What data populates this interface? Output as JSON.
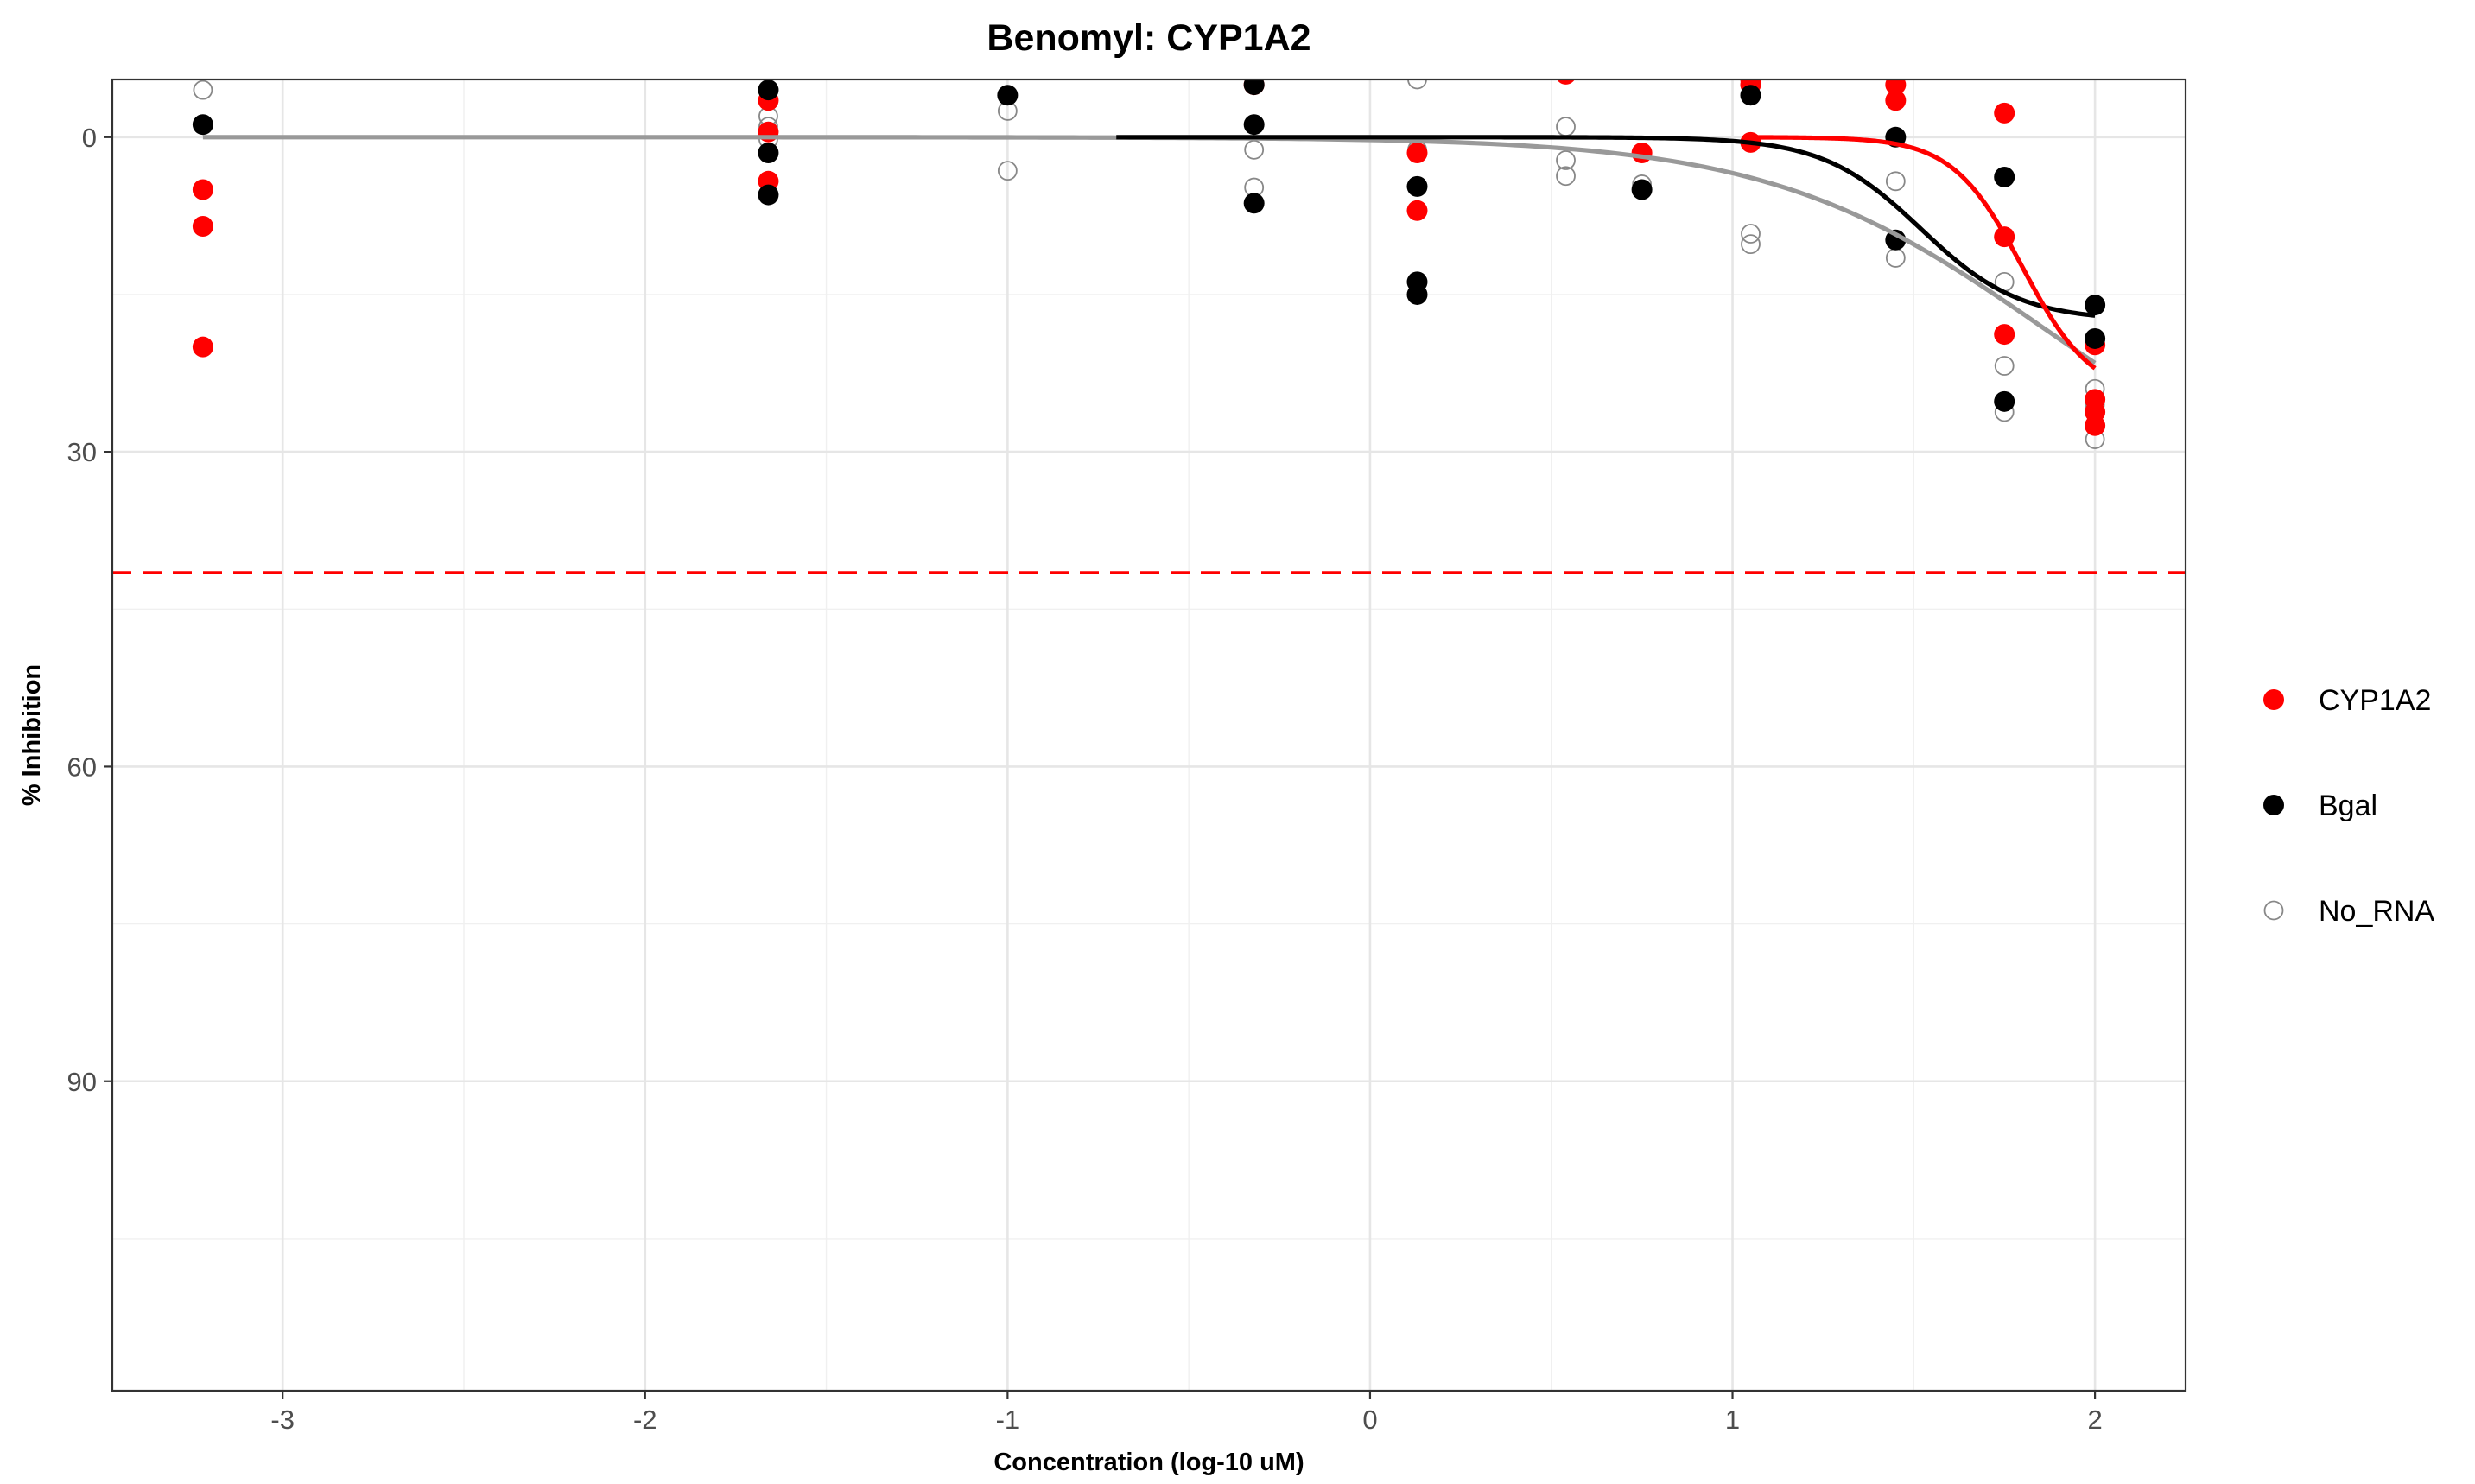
{
  "chart_data": {
    "type": "scatter",
    "title": "Benomyl: CYP1A2",
    "xlabel": "Concentration (log-10 uM)",
    "ylabel": "% Inhibition",
    "xlim": [
      -3.47,
      2.25
    ],
    "ylim": [
      119.5,
      -5.5
    ],
    "y_reversed": true,
    "x_ticks": [
      -3,
      -2,
      -1,
      0,
      1,
      2
    ],
    "x_tick_labels": [
      "-3",
      "-2",
      "-1",
      "0",
      "1",
      "2"
    ],
    "y_ticks": [
      0,
      30,
      60,
      90
    ],
    "y_tick_labels": [
      "0",
      "30",
      "60",
      "90"
    ],
    "grid": true,
    "legend_position": "right",
    "threshold_line": {
      "y": 41.5,
      "style": "dashed",
      "color": "#ff0000"
    },
    "series": [
      {
        "name": "CYP1A2",
        "color": "#ff0000",
        "marker": "filled",
        "points": [
          [
            -3.22,
            5.0
          ],
          [
            -3.22,
            8.5
          ],
          [
            -3.22,
            20.0
          ],
          [
            -1.66,
            -3.5
          ],
          [
            -1.66,
            -0.5
          ],
          [
            -1.66,
            4.2
          ],
          [
            -0.32,
            -5.0
          ],
          [
            0.13,
            1.5
          ],
          [
            0.13,
            7.0
          ],
          [
            0.54,
            -6.0
          ],
          [
            0.75,
            1.5
          ],
          [
            1.05,
            -5.5
          ],
          [
            1.05,
            -5.0
          ],
          [
            1.05,
            0.5
          ],
          [
            1.45,
            -5.0
          ],
          [
            1.45,
            -3.5
          ],
          [
            1.75,
            -2.3
          ],
          [
            1.75,
            9.5
          ],
          [
            1.75,
            18.8
          ],
          [
            2.0,
            19.8
          ],
          [
            2.0,
            25.0
          ],
          [
            2.0,
            26.2
          ],
          [
            2.0,
            27.5
          ]
        ],
        "curve": {
          "bottom": 0,
          "top": 24.8,
          "ec50_log": 1.8,
          "hill": 4.5,
          "x_start": 1.05,
          "x_end": 2.0
        }
      },
      {
        "name": "Bgal",
        "color": "#000000",
        "marker": "filled",
        "points": [
          [
            -3.22,
            -1.2
          ],
          [
            -1.66,
            -4.5
          ],
          [
            -1.66,
            1.5
          ],
          [
            -1.66,
            5.5
          ],
          [
            -1.0,
            -4.0
          ],
          [
            -0.32,
            -5.0
          ],
          [
            -0.32,
            -1.2
          ],
          [
            -0.32,
            6.3
          ],
          [
            0.13,
            4.7
          ],
          [
            0.13,
            13.8
          ],
          [
            0.13,
            15.0
          ],
          [
            0.75,
            5.0
          ],
          [
            1.05,
            -4.0
          ],
          [
            1.45,
            0.0
          ],
          [
            1.45,
            9.8
          ],
          [
            1.75,
            3.8
          ],
          [
            1.75,
            25.2
          ],
          [
            2.0,
            16.0
          ],
          [
            2.0,
            19.2
          ]
        ],
        "curve": {
          "bottom": 0,
          "top": 17.5,
          "ec50_log": 1.52,
          "hill": 3.2,
          "x_start": -0.7,
          "x_end": 2.0
        }
      },
      {
        "name": "No_RNA",
        "color": "#888888",
        "marker": "open",
        "points": [
          [
            -3.22,
            -4.5
          ],
          [
            -1.66,
            -2.0
          ],
          [
            -1.66,
            -1.0
          ],
          [
            -1.66,
            0.2
          ],
          [
            -1.0,
            -2.5
          ],
          [
            -1.0,
            3.2
          ],
          [
            -0.32,
            1.2
          ],
          [
            -0.32,
            4.8
          ],
          [
            0.13,
            -5.5
          ],
          [
            0.13,
            1.2
          ],
          [
            0.54,
            -1.0
          ],
          [
            0.54,
            2.2
          ],
          [
            0.54,
            3.7
          ],
          [
            0.75,
            4.5
          ],
          [
            1.05,
            9.2
          ],
          [
            1.05,
            10.2
          ],
          [
            1.45,
            4.2
          ],
          [
            1.45,
            11.5
          ],
          [
            1.75,
            13.8
          ],
          [
            1.75,
            21.8
          ],
          [
            1.75,
            26.2
          ],
          [
            2.0,
            24.0
          ],
          [
            2.0,
            25.5
          ],
          [
            2.0,
            28.8
          ]
        ],
        "curve": {
          "bottom": 0,
          "top": 36.0,
          "ec50_log": 1.85,
          "hill": 1.15,
          "x_start": -3.22,
          "x_end": 2.0
        }
      }
    ]
  }
}
